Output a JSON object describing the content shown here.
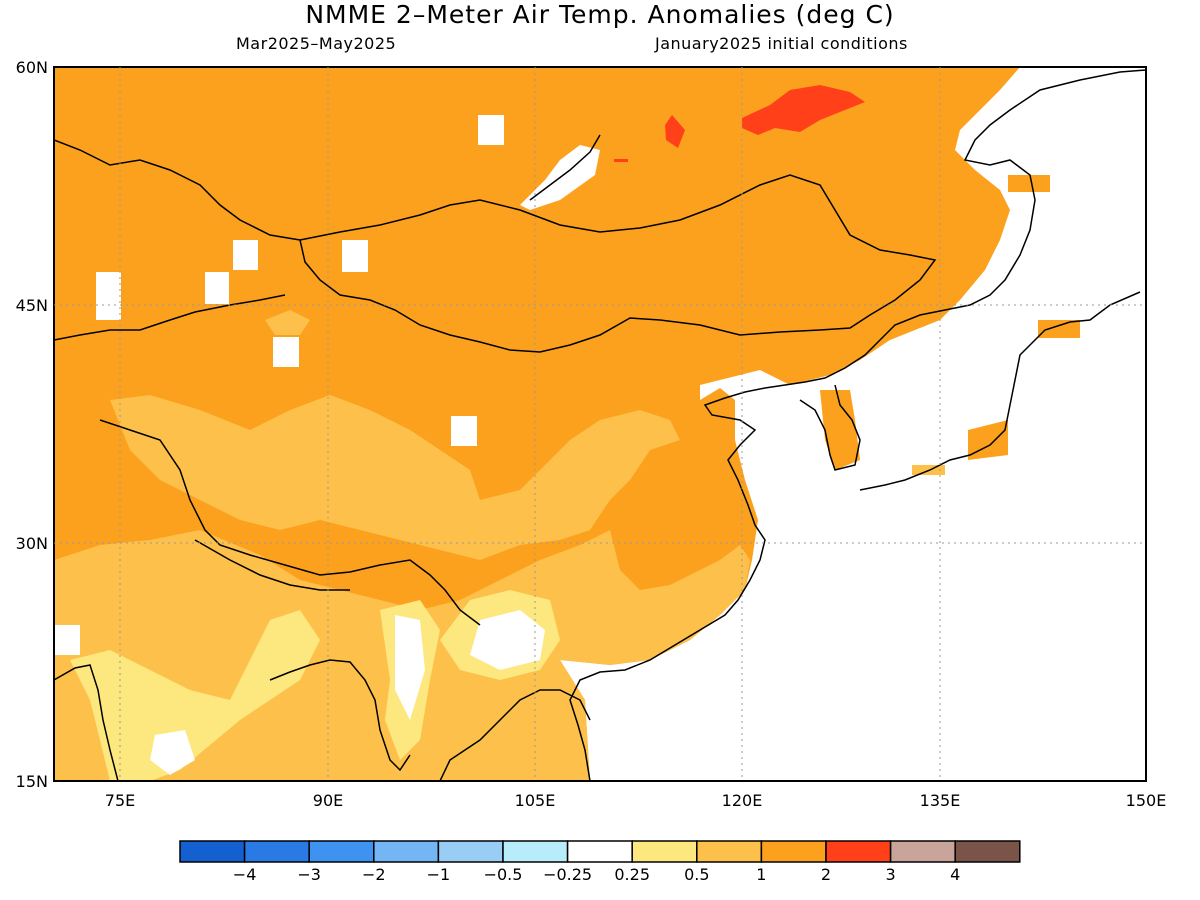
{
  "header": {
    "title": "NMME 2–Meter Air Temp. Anomalies (deg C)",
    "period": "Mar2025–May2025",
    "initial_conditions": "January2025 initial conditions"
  },
  "map": {
    "lat_labels": [
      "60N",
      "45N",
      "30N",
      "15N"
    ],
    "lon_labels": [
      "75E",
      "90E",
      "105E",
      "120E",
      "135E",
      "150E"
    ],
    "region_notes": {
      "high_anomaly": "3",
      "base_anomaly": "2"
    }
  },
  "legend": {
    "colors": [
      "#1560d0",
      "#2a7ae6",
      "#3f93f0",
      "#74b5f4",
      "#98cdf6",
      "#b8ecfa",
      "#ffffff",
      "#fde77f",
      "#fdc04a",
      "#fba11e",
      "#ff4019",
      "#c9a49a",
      "#7a5448"
    ],
    "labels": [
      "−4",
      "−3",
      "−2",
      "−1",
      "−0.5",
      "−0.25",
      "0.25",
      "0.5",
      "1",
      "2",
      "3",
      "4"
    ]
  }
}
